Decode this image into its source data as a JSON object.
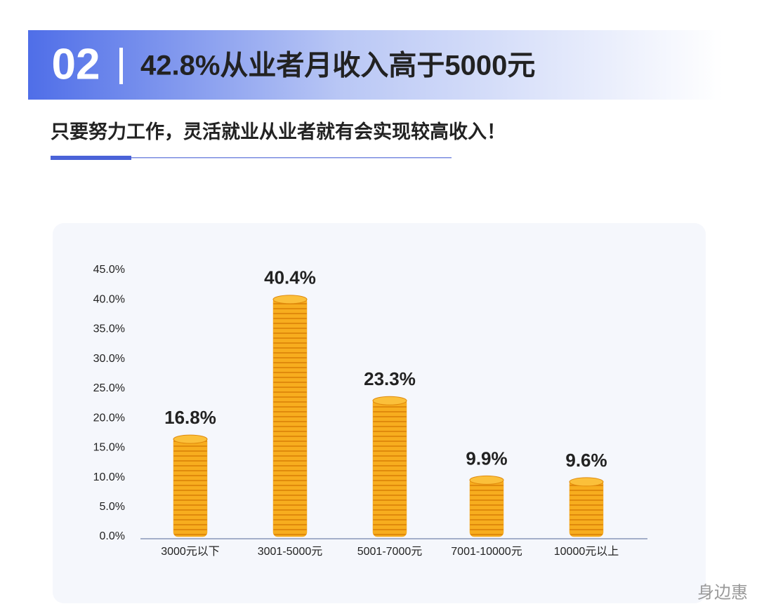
{
  "header": {
    "number": "02",
    "title": "42.8%从业者月收入高于5000元",
    "subtitle": "只要努力工作，灵活就业从业者就有会实现较高收入！"
  },
  "chart_data": {
    "type": "bar",
    "categories": [
      "3000元以下",
      "3001-5000元",
      "5001-7000元",
      "7001-10000元",
      "10000元以上"
    ],
    "values": [
      16.8,
      40.4,
      23.3,
      9.9,
      9.6
    ],
    "value_labels": [
      "16.8%",
      "40.4%",
      "23.3%",
      "9.9%",
      "9.6%"
    ],
    "color": "#f5a623",
    "ylim": [
      0,
      45
    ],
    "yticks": [
      {
        "value": 0,
        "label": "0.0%"
      },
      {
        "value": 5,
        "label": "5.0%"
      },
      {
        "value": 10,
        "label": "10.0%"
      },
      {
        "value": 15,
        "label": "15.0%"
      },
      {
        "value": 20,
        "label": "20.0%"
      },
      {
        "value": 25,
        "label": "25.0%"
      },
      {
        "value": 30,
        "label": "30.0%"
      },
      {
        "value": 35,
        "label": "35.0%"
      },
      {
        "value": 40,
        "label": "40.0%"
      },
      {
        "value": 45,
        "label": "45.0%"
      }
    ],
    "grid": false
  },
  "watermark": "身边惠"
}
